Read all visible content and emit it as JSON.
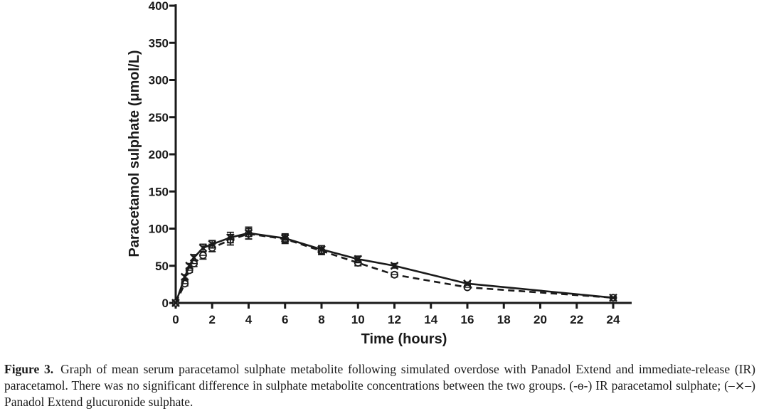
{
  "chart_data": {
    "type": "line",
    "xlabel": "Time (hours)",
    "ylabel": "Paracetamol sulphate (μmol/L)",
    "xlim": [
      0,
      24
    ],
    "ylim": [
      0,
      400
    ],
    "xticks": [
      0,
      2,
      4,
      6,
      8,
      10,
      12,
      14,
      16,
      18,
      20,
      22,
      24
    ],
    "yticks": [
      0,
      50,
      100,
      150,
      200,
      250,
      300,
      350,
      400
    ],
    "grid": false,
    "legend": "none",
    "series": [
      {
        "name": "IR paracetamol sulphate",
        "marker": "circle",
        "line": "dashed",
        "color": "#1a1a1a",
        "x": [
          0,
          0.5,
          0.75,
          1,
          1.5,
          2,
          3,
          4,
          6,
          8,
          10,
          12,
          16,
          24
        ],
        "y": [
          0,
          26,
          44,
          53,
          64,
          74,
          85,
          93,
          86,
          70,
          54,
          38,
          21,
          7
        ],
        "err": [
          0,
          3,
          3,
          4,
          5,
          5,
          7,
          7,
          6,
          5,
          4,
          3,
          2,
          1
        ]
      },
      {
        "name": "Panadol Extend glucuronide sulphate",
        "marker": "x",
        "line": "solid",
        "color": "#1a1a1a",
        "x": [
          0,
          0.5,
          0.75,
          1,
          1.5,
          2,
          3,
          4,
          6,
          8,
          10,
          12,
          16,
          24
        ],
        "y": [
          0,
          35,
          50,
          61,
          74,
          79,
          88,
          94,
          87,
          72,
          59,
          50,
          26,
          7
        ],
        "err": [
          0,
          3,
          3,
          4,
          5,
          5,
          7,
          8,
          6,
          5,
          4,
          3,
          2,
          1
        ]
      }
    ]
  },
  "caption": {
    "label": "Figure 3.",
    "text": "Graph of mean serum paracetamol sulphate metabolite following simulated overdose with Panadol Extend and immediate-release (IR) paracetamol. There was no significant difference in sulphate metabolite concentrations between the two groups. (-ɵ-) IR paracetamol sulphate; (–⨯–) Panadol Extend glucuronide sulphate."
  }
}
